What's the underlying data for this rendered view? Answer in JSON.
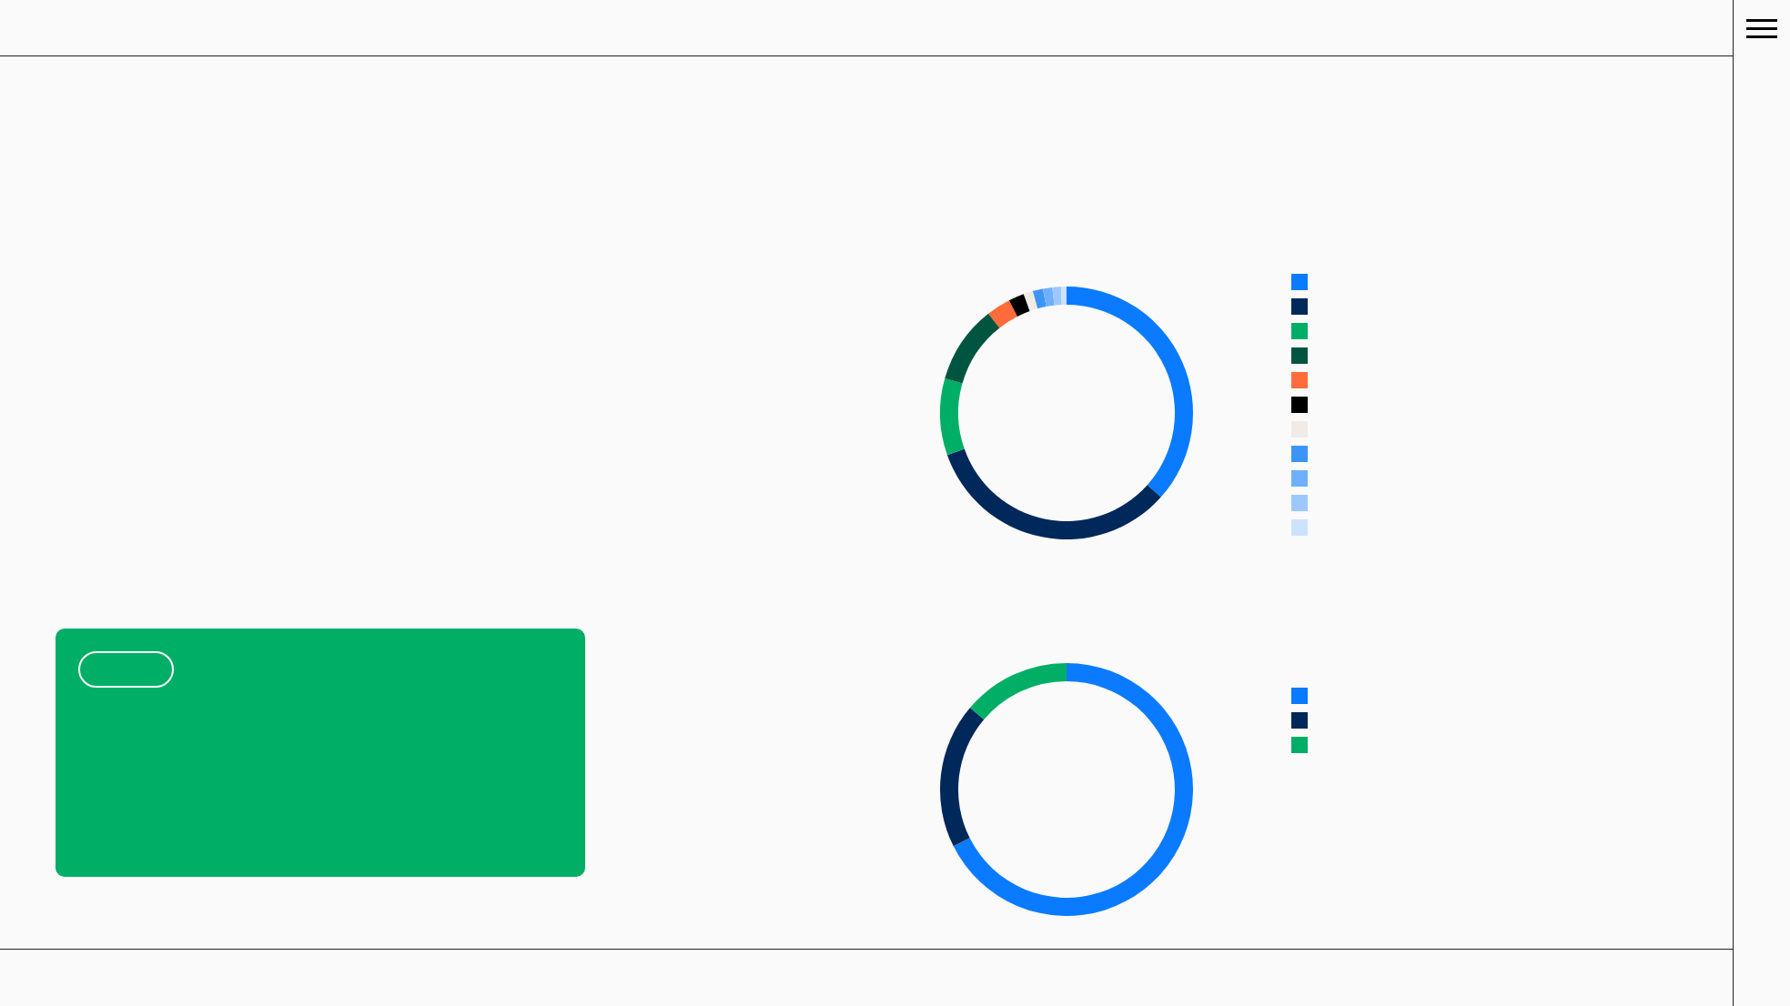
{
  "chart_data": [
    {
      "type": "donut",
      "categories": [
        null,
        null,
        null,
        null,
        null,
        null,
        null,
        null,
        null,
        null,
        null
      ],
      "values": [
        36.6,
        33.0,
        9.8,
        10.0,
        3.1,
        2.0,
        1.2,
        1.3,
        1.2,
        1.1,
        0.7
      ],
      "colors": [
        "#0a7bff",
        "#00285a",
        "#00ae66",
        "#005541",
        "#ff6b3b",
        "#000000",
        "#f0ebe6",
        "#3d94f7",
        "#6eb0fd",
        "#9dc8fd",
        "#cde3fd"
      ]
    },
    {
      "type": "donut",
      "categories": [
        null,
        null,
        null
      ],
      "values": [
        67.6,
        18.6,
        13.8
      ],
      "colors": [
        "#0a7bff",
        "#00285a",
        "#00ae66"
      ]
    }
  ]
}
